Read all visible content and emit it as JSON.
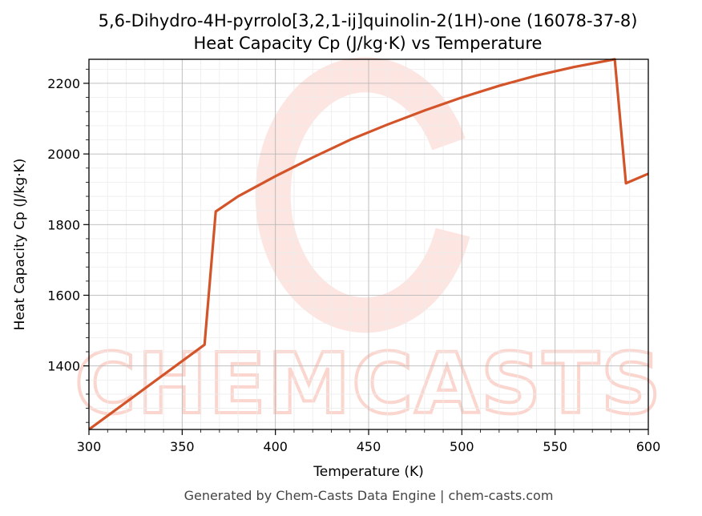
{
  "page": {
    "title_line1": "5,6-Dihydro-4H-pyrrolo[3,2,1-ij]quinolin-2(1H)-one (16078-37-8)",
    "title_line2": "Heat Capacity Cp (J/kg·K) vs Temperature",
    "footer": "Generated by Chem-Casts Data Engine | chem-casts.com",
    "watermark": "CHEMCASTS"
  },
  "chart_data": {
    "type": "line",
    "title": "5,6-Dihydro-4H-pyrrolo[3,2,1-ij]quinolin-2(1H)-one (16078-37-8)\nHeat Capacity Cp (J/kg·K) vs Temperature",
    "xlabel": "Temperature (K)",
    "ylabel": "Heat Capacity Cp (J/kg·K)",
    "xlim": [
      300,
      600
    ],
    "ylim": [
      1220,
      2268
    ],
    "xticks": [
      300,
      350,
      400,
      450,
      500,
      550,
      600
    ],
    "yticks": [
      1400,
      1600,
      1800,
      2000,
      2200
    ],
    "xtick_labels": [
      "300",
      "350",
      "400",
      "450",
      "500",
      "550",
      "600"
    ],
    "ytick_labels": [
      "1400",
      "1600",
      "1800",
      "2000",
      "2200"
    ],
    "grid": true,
    "minor_grid": true,
    "line_color": "#d4542a",
    "series": [
      {
        "x": [
          300,
          362,
          368,
          380,
          400,
          420,
          440,
          460,
          480,
          500,
          520,
          540,
          560,
          582,
          588,
          600
        ],
        "y": [
          1220,
          1460,
          1837,
          1880,
          1937,
          1990,
          2040,
          2083,
          2123,
          2160,
          2193,
          2222,
          2246,
          2268,
          1917,
          1944
        ]
      }
    ]
  }
}
